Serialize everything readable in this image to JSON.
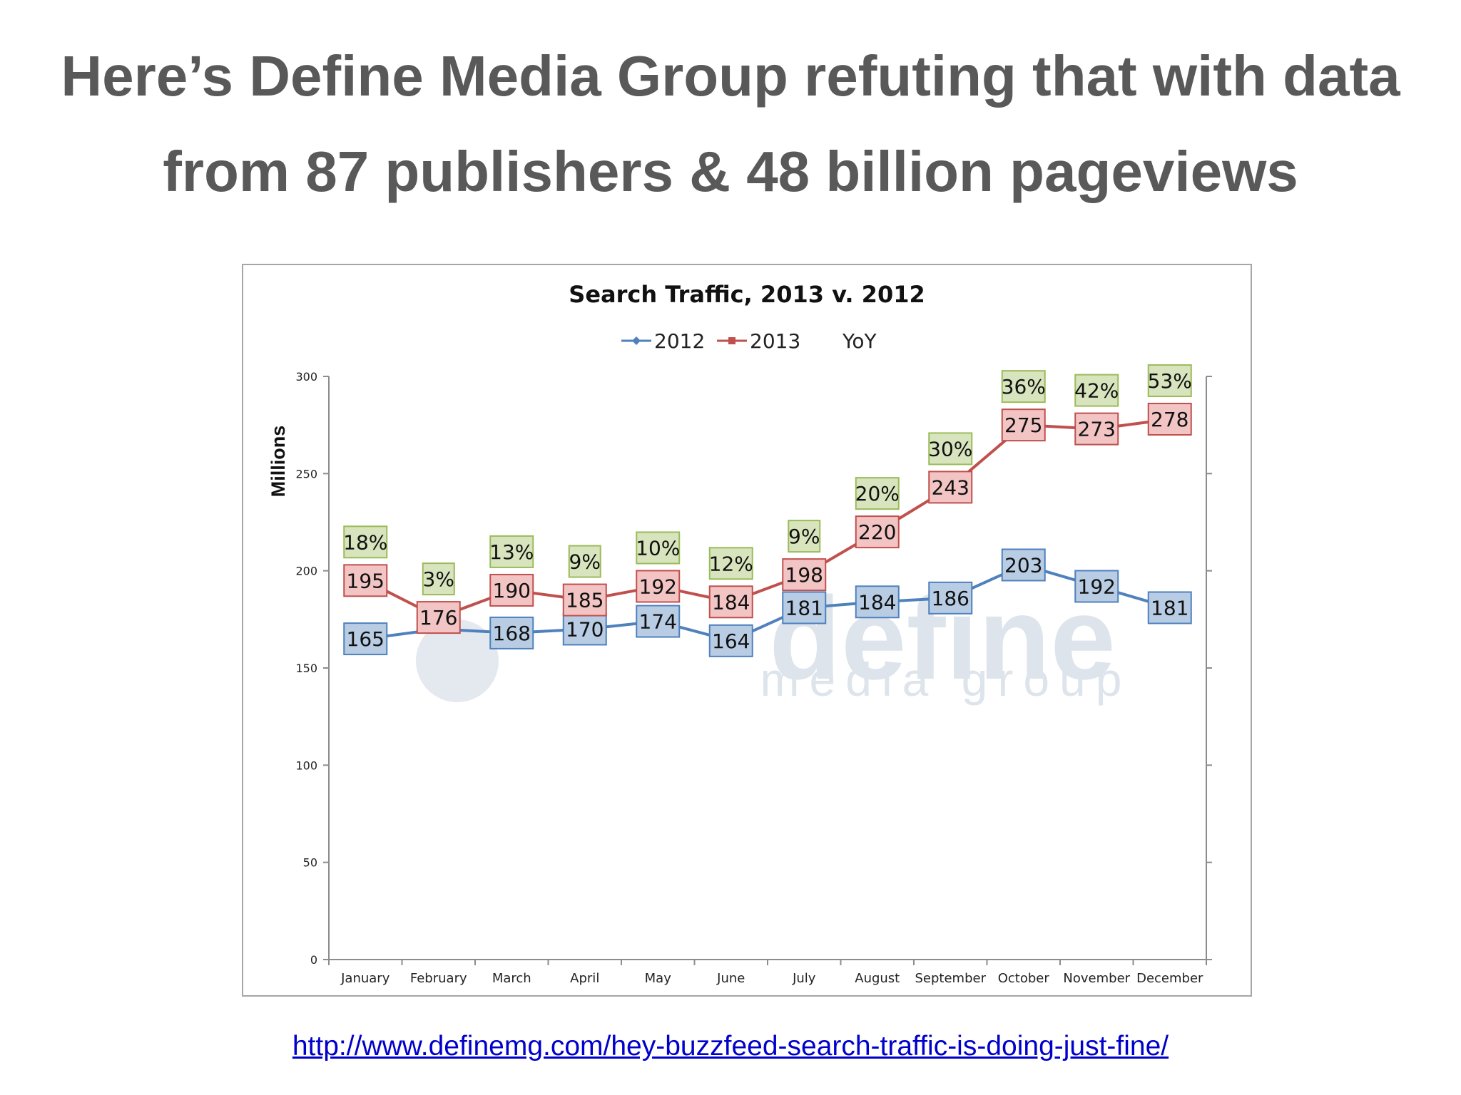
{
  "slide": {
    "title_line1": "Here’s Define Media Group refuting that with data",
    "title_line2": "from 87 publishers & 48 billion pageviews",
    "source_url": "http://www.definemg.com/hey-buzzfeed-search-traffic-is-doing-just-fine/"
  },
  "watermark": {
    "brand": "define",
    "sub": "media group"
  },
  "chart_data": {
    "type": "line",
    "title": "Search Traffic, 2013 v. 2012",
    "ylabel": "Millions",
    "xlabel": "",
    "ylim": [
      0,
      300
    ],
    "yticks": [
      0,
      50,
      100,
      150,
      200,
      250,
      300
    ],
    "grid": false,
    "legend_position": "top",
    "categories": [
      "January",
      "February",
      "March",
      "April",
      "May",
      "June",
      "July",
      "August",
      "September",
      "October",
      "November",
      "December"
    ],
    "series": [
      {
        "name": "2012",
        "color": "#4f81bd",
        "label_fill": "#b8cce4",
        "values": [
          165,
          170,
          168,
          170,
          174,
          164,
          181,
          184,
          186,
          203,
          192,
          181
        ],
        "labels": [
          "165",
          "",
          "168",
          "170",
          "174",
          "164",
          "181",
          "184",
          "186",
          "203",
          "192",
          "181"
        ]
      },
      {
        "name": "2013",
        "color": "#c0504d",
        "label_fill": "#f2c4c4",
        "values": [
          195,
          176,
          190,
          185,
          192,
          184,
          198,
          220,
          243,
          275,
          273,
          278
        ],
        "labels": [
          "195",
          "176",
          "190",
          "185",
          "192",
          "184",
          "198",
          "220",
          "243",
          "275",
          "273",
          "278"
        ]
      }
    ],
    "yoy": {
      "name": "YoY",
      "label_fill": "#d7e4bd",
      "values": [
        "18%",
        "3%",
        "13%",
        "9%",
        "10%",
        "12%",
        "9%",
        "20%",
        "30%",
        "36%",
        "42%",
        "53%"
      ]
    }
  }
}
